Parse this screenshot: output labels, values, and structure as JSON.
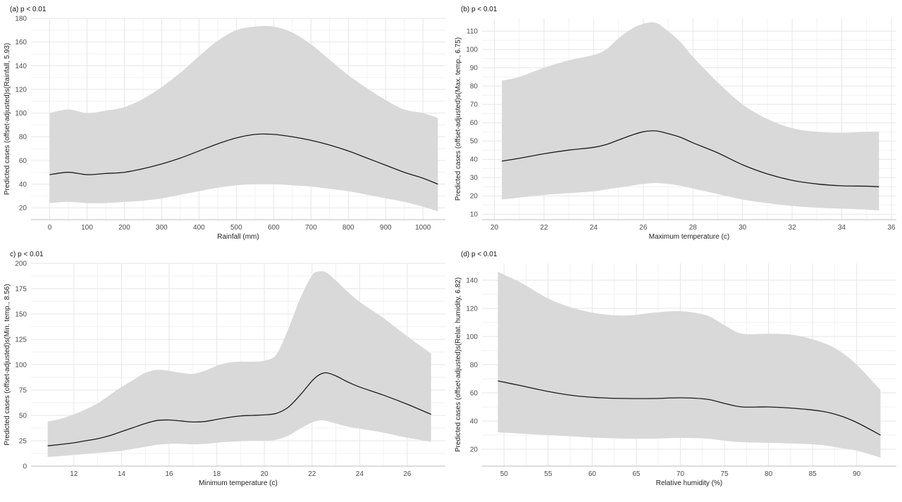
{
  "chart_data": [
    {
      "type": "line",
      "panel_title": "(a) p < 0.01",
      "xlabel": "Rainfall (mm)",
      "ylabel": "Predicted cases (offset-adjusted)s(Rainfall, 5.93)",
      "xlim": [
        -50,
        1060
      ],
      "ylim": [
        10,
        180
      ],
      "xticks": [
        0,
        100,
        200,
        300,
        400,
        500,
        600,
        700,
        800,
        900,
        1000
      ],
      "yticks": [
        20,
        40,
        60,
        80,
        100,
        120,
        140,
        160,
        180
      ],
      "grid": true,
      "series": [
        {
          "x": [
            0,
            50,
            100,
            150,
            200,
            250,
            300,
            350,
            400,
            450,
            500,
            550,
            600,
            650,
            700,
            750,
            800,
            850,
            900,
            950,
            1000,
            1040
          ],
          "fit": [
            48,
            50,
            48,
            49,
            50,
            53,
            57,
            62,
            68,
            74,
            79,
            82,
            82,
            80,
            77,
            73,
            68,
            62,
            56,
            50,
            45,
            40
          ],
          "lower": [
            24,
            25,
            24,
            24,
            25,
            26,
            28,
            31,
            34,
            37,
            39,
            40,
            40,
            39,
            38,
            36,
            34,
            31,
            28,
            25,
            21,
            17
          ],
          "upper": [
            100,
            103,
            100,
            102,
            105,
            112,
            122,
            134,
            148,
            161,
            170,
            173,
            173,
            168,
            158,
            145,
            132,
            121,
            111,
            103,
            100,
            96
          ]
        }
      ]
    },
    {
      "type": "line",
      "panel_title": "(b) p < 0.01",
      "xlabel": "Maximum temperature (c)",
      "ylabel": "Predicted cases (offset-adjusted)s(Max. temp., 6.75)",
      "xlim": [
        19.5,
        36.2
      ],
      "ylim": [
        7,
        117
      ],
      "xticks": [
        20,
        22,
        24,
        26,
        28,
        30,
        32,
        34,
        36
      ],
      "yticks": [
        10,
        20,
        30,
        40,
        50,
        60,
        70,
        80,
        90,
        100,
        110
      ],
      "grid": true,
      "series": [
        {
          "x": [
            20.3,
            21,
            22,
            23,
            24,
            24.5,
            25,
            25.5,
            26,
            26.5,
            27,
            27.5,
            28,
            29,
            30,
            31,
            32,
            33,
            34,
            35,
            35.5
          ],
          "fit": [
            39,
            40.5,
            43,
            45,
            46.5,
            48,
            50.5,
            53,
            55,
            55.5,
            54,
            52,
            49,
            43.5,
            37,
            32,
            28.5,
            26.5,
            25.5,
            25.3,
            25
          ],
          "lower": [
            18,
            19,
            20.5,
            21.5,
            22.5,
            23.5,
            24.5,
            25.5,
            26.5,
            27,
            26.5,
            25.5,
            24,
            21,
            18,
            16,
            14.5,
            13.5,
            13,
            12.5,
            12
          ],
          "upper": [
            83,
            85,
            90,
            94,
            97,
            100,
            106,
            111,
            114,
            114.5,
            110,
            104,
            96,
            82,
            70,
            62,
            57,
            55,
            54.5,
            55,
            55
          ]
        }
      ]
    },
    {
      "type": "line",
      "panel_title": "c) p < 0.01",
      "xlabel": "Minimum temperature (c)",
      "ylabel": "Predicted cases (offset-adjusted)s(Min. temp., 8.56)",
      "xlim": [
        10.2,
        27.6
      ],
      "ylim": [
        0,
        200
      ],
      "xticks": [
        12,
        14,
        16,
        18,
        20,
        22,
        24,
        26
      ],
      "yticks": [
        0,
        25,
        50,
        75,
        100,
        125,
        150,
        175,
        200
      ],
      "grid": true,
      "series": [
        {
          "x": [
            10.9,
            11.5,
            12,
            12.5,
            13,
            13.5,
            14,
            14.5,
            15,
            15.5,
            16,
            16.5,
            17,
            17.5,
            18,
            18.5,
            19,
            19.5,
            20,
            20.5,
            21,
            21.5,
            22,
            22.3,
            22.6,
            23,
            23.5,
            24,
            25,
            26,
            27
          ],
          "fit": [
            20,
            21.5,
            23,
            25,
            27,
            30,
            34,
            38,
            42,
            45,
            45.5,
            44.5,
            43.5,
            44,
            46,
            48,
            49.5,
            50,
            50.5,
            52,
            58,
            70,
            84,
            90,
            92,
            89,
            83,
            78,
            70,
            61,
            51
          ],
          "lower": [
            9,
            10,
            11,
            12,
            13,
            14,
            15,
            17,
            19,
            21,
            22,
            22,
            21.5,
            22,
            23,
            24,
            24.5,
            25,
            25,
            26,
            30,
            37,
            43,
            45,
            44.5,
            42,
            39,
            37,
            33,
            28,
            24
          ],
          "upper": [
            44,
            47,
            51,
            56,
            62,
            70,
            78,
            85,
            92,
            95,
            94,
            92,
            91,
            94,
            99,
            102,
            103,
            103,
            104,
            110,
            135,
            165,
            188,
            192,
            191,
            183,
            172,
            162,
            146,
            128,
            111
          ]
        }
      ]
    },
    {
      "type": "line",
      "panel_title": "(d) p < 0.01",
      "xlabel": "Relative humidity (%)",
      "ylabel": "Predicted cases (offset-adjusted)s(Relat. humidity, 6.82)",
      "xlim": [
        47.5,
        94.5
      ],
      "ylim": [
        8,
        152
      ],
      "xticks": [
        50,
        55,
        60,
        65,
        70,
        75,
        80,
        85,
        90
      ],
      "yticks": [
        20,
        40,
        60,
        80,
        100,
        120,
        140
      ],
      "grid": true,
      "series": [
        {
          "x": [
            49.3,
            52,
            55,
            58,
            61,
            64,
            67,
            70,
            73,
            75,
            77,
            80,
            83,
            86,
            88,
            90,
            92.7
          ],
          "fit": [
            68.5,
            65,
            61,
            58,
            56.5,
            56,
            56,
            56.5,
            55.5,
            52.5,
            50,
            50,
            49,
            47,
            44,
            39,
            30
          ],
          "lower": [
            32,
            31,
            30,
            29,
            28,
            27.5,
            27.5,
            28,
            27.5,
            26,
            25,
            24.5,
            24,
            23,
            21,
            19,
            14
          ],
          "upper": [
            146,
            138,
            127,
            120,
            116,
            115,
            117,
            118,
            115,
            108,
            102,
            102,
            101,
            96,
            90,
            80,
            62
          ]
        }
      ]
    }
  ]
}
